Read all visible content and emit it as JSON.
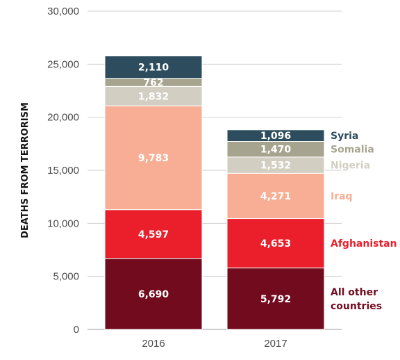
{
  "chart_data": {
    "type": "bar",
    "stacked": true,
    "categories": [
      "2016",
      "2017"
    ],
    "ylabel": "DEATHS FROM TERRORISM",
    "ylim": [
      0,
      30000
    ],
    "yticks": [
      "0",
      "5,000",
      "10,000",
      "15,000",
      "20,000",
      "25,000",
      "30,000"
    ],
    "grid": true,
    "series": [
      {
        "name": "All other countries",
        "legend_lines": [
          "All other",
          "countries"
        ],
        "color": "#720b1e",
        "values": [
          6690,
          5792
        ],
        "labels": [
          "6,690",
          "5,792"
        ]
      },
      {
        "name": "Afghanistan",
        "legend_lines": [
          "Afghanistan"
        ],
        "color": "#ea1f2b",
        "values": [
          4597,
          4653
        ],
        "labels": [
          "4,597",
          "4,653"
        ]
      },
      {
        "name": "Iraq",
        "legend_lines": [
          "Iraq"
        ],
        "color": "#f7ae95",
        "values": [
          9783,
          4271
        ],
        "labels": [
          "9,783",
          "4,271"
        ]
      },
      {
        "name": "Nigeria",
        "legend_lines": [
          "Nigeria"
        ],
        "color": "#d2cfc2",
        "values": [
          1832,
          1532
        ],
        "labels": [
          "1,832",
          "1,532"
        ]
      },
      {
        "name": "Somalia",
        "legend_lines": [
          "Somalia"
        ],
        "color": "#a6a38e",
        "values": [
          762,
          1470
        ],
        "labels": [
          "762",
          "1,470"
        ]
      },
      {
        "name": "Syria",
        "legend_lines": [
          "Syria"
        ],
        "color": "#2d4d5e",
        "values": [
          2110,
          1096
        ],
        "labels": [
          "2,110",
          "1,096"
        ]
      }
    ]
  }
}
